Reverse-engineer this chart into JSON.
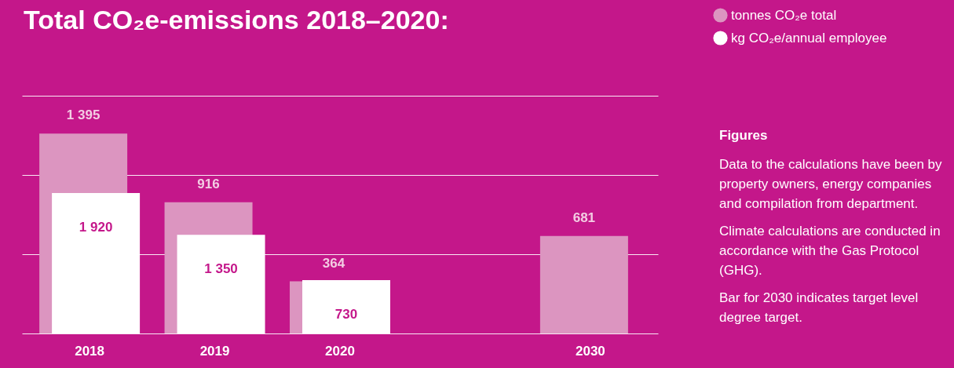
{
  "chart_data": {
    "type": "bar",
    "title": "Total CO₂e-emissions 2018–2020:",
    "categories": [
      "2018",
      "2019",
      "2020",
      null,
      "2030"
    ],
    "series": [
      {
        "name": "tonnes CO₂e total",
        "color": "#dc95c0",
        "values": [
          1395,
          916,
          364,
          null,
          681
        ],
        "value_labels": [
          "1 395",
          "916",
          "364",
          null,
          "681"
        ]
      },
      {
        "name": "kg CO₂e/annual employee",
        "color": "#ffffff",
        "axis": "y2",
        "values": [
          1920,
          1350,
          730,
          null,
          null
        ],
        "value_labels": [
          "1 920",
          "1 350",
          "730",
          null,
          null
        ]
      }
    ],
    "ylim": [
      0,
      1660
    ],
    "yticks": [
      {
        "value": 0,
        "label": null
      },
      {
        "value": 553,
        "label": null
      },
      {
        "value": 1107,
        "label": null
      },
      {
        "value": 1660,
        "label": null
      }
    ],
    "y2lim": [
      0,
      3250
    ],
    "grid": "y",
    "tick_labels": "x",
    "legend": "top right",
    "annotations": [
      "Figures",
      "Data to the calculations have been by property owners, energy companies and compilation from department.",
      "Climate calculations are conducted in accordance with the Gas Protocol (GHG).",
      "Bar for 2030 indicates target level degree target."
    ]
  }
}
